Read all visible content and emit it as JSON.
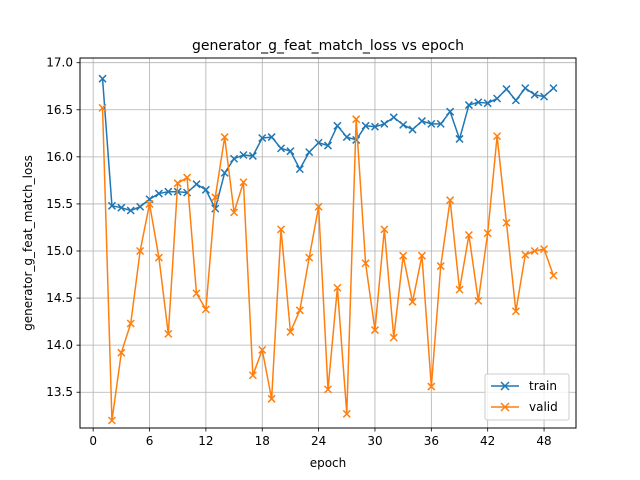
{
  "chart_data": {
    "type": "line",
    "title": "generator_g_feat_match_loss vs epoch",
    "xlabel": "epoch",
    "ylabel": "generator_g_feat_match_loss",
    "xlim": [
      -1.4,
      51.4
    ],
    "ylim": [
      13.12,
      17.05
    ],
    "xticks": [
      0,
      6,
      12,
      18,
      24,
      30,
      36,
      42,
      48
    ],
    "yticks": [
      13.5,
      14.0,
      14.5,
      15.0,
      15.5,
      16.0,
      16.5,
      17.0
    ],
    "ytick_labels": [
      "13.5",
      "14.0",
      "14.5",
      "15.0",
      "15.5",
      "16.0",
      "16.5",
      "17.0"
    ],
    "grid": true,
    "legend_position": "lower-right",
    "marker": "x",
    "x": [
      1,
      2,
      3,
      4,
      5,
      6,
      7,
      8,
      9,
      10,
      11,
      12,
      13,
      14,
      15,
      16,
      17,
      18,
      19,
      20,
      21,
      22,
      23,
      24,
      25,
      26,
      27,
      28,
      29,
      30,
      31,
      32,
      33,
      34,
      35,
      36,
      37,
      38,
      39,
      40,
      41,
      42,
      43,
      44,
      45,
      46,
      47,
      48,
      49
    ],
    "series": [
      {
        "name": "train",
        "color": "#1f77b4",
        "values": [
          16.83,
          15.48,
          15.46,
          15.43,
          15.47,
          15.55,
          15.61,
          15.63,
          15.63,
          15.62,
          15.71,
          15.65,
          15.45,
          15.83,
          15.98,
          16.02,
          16.01,
          16.2,
          16.21,
          16.09,
          16.06,
          15.87,
          16.05,
          16.15,
          16.12,
          16.33,
          16.21,
          16.18,
          16.33,
          16.32,
          16.35,
          16.42,
          16.34,
          16.29,
          16.38,
          16.35,
          16.35,
          16.48,
          16.19,
          16.55,
          16.58,
          16.57,
          16.62,
          16.72,
          16.6,
          16.73,
          16.66,
          16.64,
          16.73
        ]
      },
      {
        "name": "valid",
        "color": "#ff7f0e",
        "values": [
          16.52,
          13.2,
          13.92,
          14.23,
          15.0,
          15.5,
          14.93,
          14.12,
          15.72,
          15.78,
          14.55,
          14.38,
          15.57,
          16.21,
          15.41,
          15.73,
          13.68,
          13.95,
          13.43,
          15.23,
          14.14,
          14.37,
          14.93,
          15.47,
          13.53,
          14.61,
          13.27,
          16.4,
          14.87,
          14.16,
          15.23,
          14.08,
          14.95,
          14.46,
          14.95,
          13.56,
          14.84,
          15.54,
          14.59,
          15.17,
          14.47,
          15.19,
          16.22,
          15.3,
          14.36,
          14.96,
          15.0,
          15.02,
          14.74
        ]
      }
    ]
  }
}
